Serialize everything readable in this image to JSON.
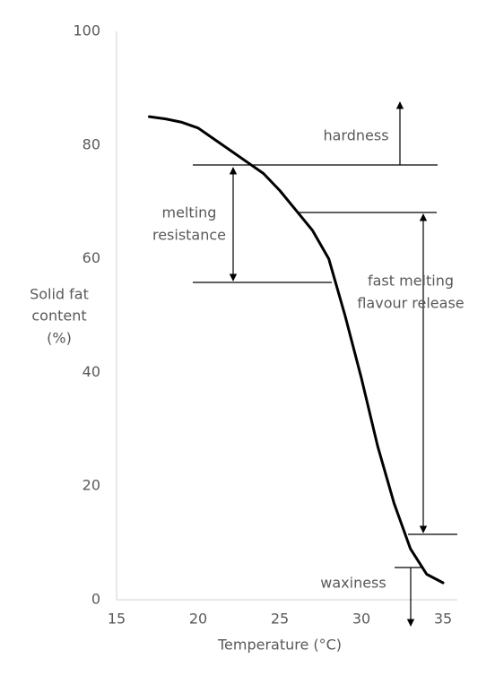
{
  "chart_data": {
    "type": "line",
    "xlabel": "Temperature (°C)",
    "ylabel": [
      "Solid fat",
      "content",
      "(%)"
    ],
    "x": [
      17,
      18,
      19,
      20,
      21,
      22,
      23,
      24,
      25,
      26,
      27,
      28,
      29,
      30,
      31,
      32,
      33,
      34,
      35
    ],
    "series": [
      {
        "color": "#000000",
        "values": [
          85,
          84.6,
          84,
          83,
          81,
          79,
          77,
          75,
          72,
          68.5,
          65,
          60,
          50,
          39,
          27,
          17,
          9,
          4.5,
          3
        ]
      }
    ],
    "xlim": [
      15,
      35
    ],
    "xticks": [
      15,
      20,
      25,
      30,
      35
    ],
    "ylim": [
      0,
      100
    ],
    "yticks": [
      0,
      20,
      40,
      60,
      80,
      100
    ],
    "grid": false,
    "annotations": {
      "hardness": [
        "hardness"
      ],
      "melting_resistance": [
        "melting",
        "resistance"
      ],
      "fast_melting": [
        "fast melting",
        "flavour release"
      ],
      "waxiness": [
        "waxiness"
      ]
    }
  }
}
